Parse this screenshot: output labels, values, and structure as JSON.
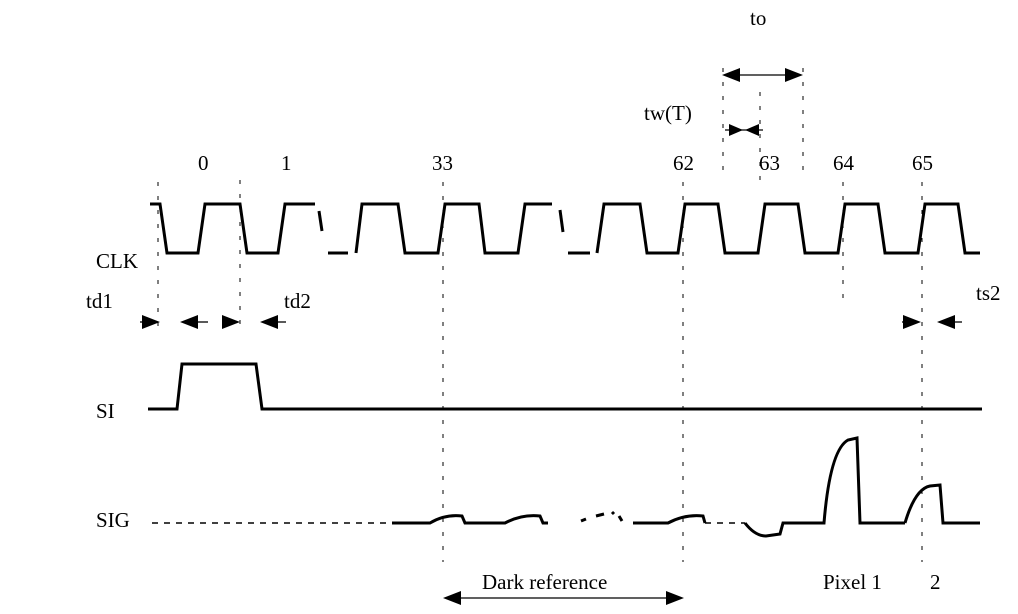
{
  "signals": {
    "clk": "CLK",
    "si": "SI",
    "sig": "SIG"
  },
  "clock_numbers": {
    "n0": "0",
    "n1": "1",
    "n33": "33",
    "n62": "62",
    "n63": "63",
    "n64": "64",
    "n65": "65"
  },
  "timing": {
    "to": "to",
    "tw": "tw(T)",
    "td1": "td1",
    "td2": "td2",
    "ts2": "ts2"
  },
  "bottom": {
    "dark_reference": "Dark reference",
    "pixel1": "Pixel 1",
    "pixel2": "2"
  }
}
